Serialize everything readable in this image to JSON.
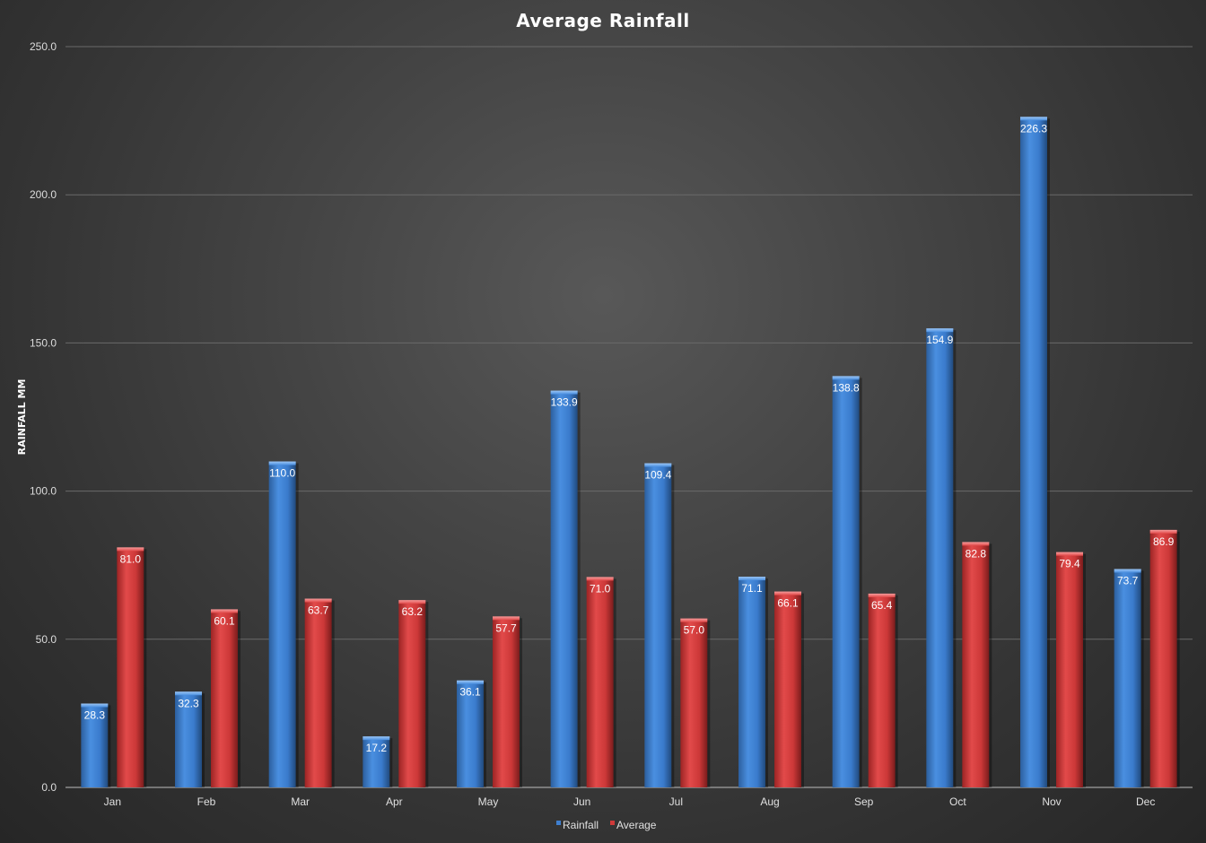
{
  "chart_data": {
    "type": "bar",
    "title": "Average Rainfall",
    "xlabel": "",
    "ylabel": "RAINFALL MM",
    "ylim": [
      0,
      250
    ],
    "yticks": [
      "0.0",
      "50.0",
      "100.0",
      "150.0",
      "200.0",
      "250.0"
    ],
    "grid": true,
    "legend_position": "bottom",
    "categories": [
      "Jan",
      "Feb",
      "Mar",
      "Apr",
      "May",
      "Jun",
      "Jul",
      "Aug",
      "Sep",
      "Oct",
      "Nov",
      "Dec"
    ],
    "series": [
      {
        "name": "Rainfall",
        "color": "#3f7fcf",
        "values": [
          28.3,
          32.3,
          110.0,
          17.2,
          36.1,
          133.9,
          109.4,
          71.1,
          138.8,
          154.9,
          226.3,
          73.7
        ]
      },
      {
        "name": "Average",
        "color": "#d03a3a",
        "values": [
          81.0,
          60.1,
          63.7,
          63.2,
          57.7,
          71.0,
          57.0,
          66.1,
          65.4,
          82.8,
          79.4,
          86.9
        ]
      }
    ]
  }
}
